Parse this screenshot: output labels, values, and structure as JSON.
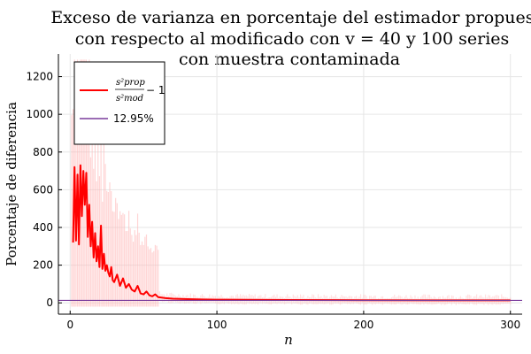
{
  "chart_data": {
    "type": "line",
    "title_lines": [
      "Exceso de varianza en porcentaje del estimador propuesto",
      "con respecto al modificado con v = 40 y 100 series",
      "con muestra contaminada"
    ],
    "xlabel": "n",
    "ylabel": "Porcentaje de diferencia",
    "xlim": [
      -8,
      308
    ],
    "ylim": [
      -60,
      1320
    ],
    "xticks": [
      0,
      100,
      200,
      300
    ],
    "yticks": [
      0,
      200,
      400,
      600,
      800,
      1000,
      1200
    ],
    "grid": true,
    "legend_position": "top-left",
    "series": [
      {
        "name": "s²prop / s²mod − 1",
        "legend_num": "s²prop",
        "legend_den": "s²mod",
        "legend_suffix": "− 1",
        "color": "#ff0000",
        "mean_x": [
          2,
          3,
          4,
          5,
          6,
          7,
          8,
          9,
          10,
          11,
          12,
          13,
          14,
          15,
          16,
          17,
          18,
          19,
          20,
          21,
          22,
          23,
          24,
          25,
          26,
          27,
          28,
          29,
          30,
          32,
          34,
          36,
          38,
          40,
          42,
          44,
          46,
          48,
          50,
          52,
          54,
          56,
          58,
          60,
          65,
          70,
          80,
          90,
          100,
          120,
          150,
          200,
          250,
          300
        ],
        "mean_y": [
          320,
          720,
          330,
          680,
          310,
          730,
          460,
          700,
          520,
          690,
          350,
          520,
          300,
          430,
          240,
          370,
          220,
          300,
          190,
          410,
          180,
          260,
          170,
          200,
          160,
          140,
          190,
          120,
          110,
          150,
          90,
          130,
          80,
          100,
          70,
          60,
          90,
          50,
          45,
          60,
          40,
          35,
          45,
          30,
          25,
          22,
          20,
          18,
          17,
          16,
          15,
          14,
          13,
          13
        ],
        "band_color": "#ffb3b3"
      },
      {
        "name": "12.95%",
        "color": "#7a3b9c",
        "y": 12.95
      }
    ]
  }
}
